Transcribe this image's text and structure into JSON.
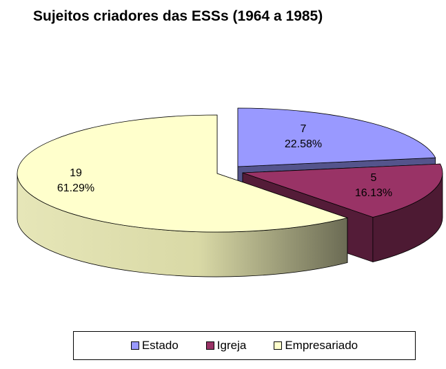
{
  "chart_data": {
    "type": "pie",
    "title": "Sujeitos criadores das ESSs (1964 a 1985)",
    "legend_position": "bottom",
    "slices": [
      {
        "name": "Estado",
        "value": 7,
        "percent_label": "22.58%",
        "color": "#9999ff"
      },
      {
        "name": "Igreja",
        "value": 5,
        "percent_label": "16.13%",
        "color": "#993366"
      },
      {
        "name": "Empresariado",
        "value": 19,
        "percent_label": "61.29%",
        "color": "#ffffcc"
      }
    ]
  }
}
